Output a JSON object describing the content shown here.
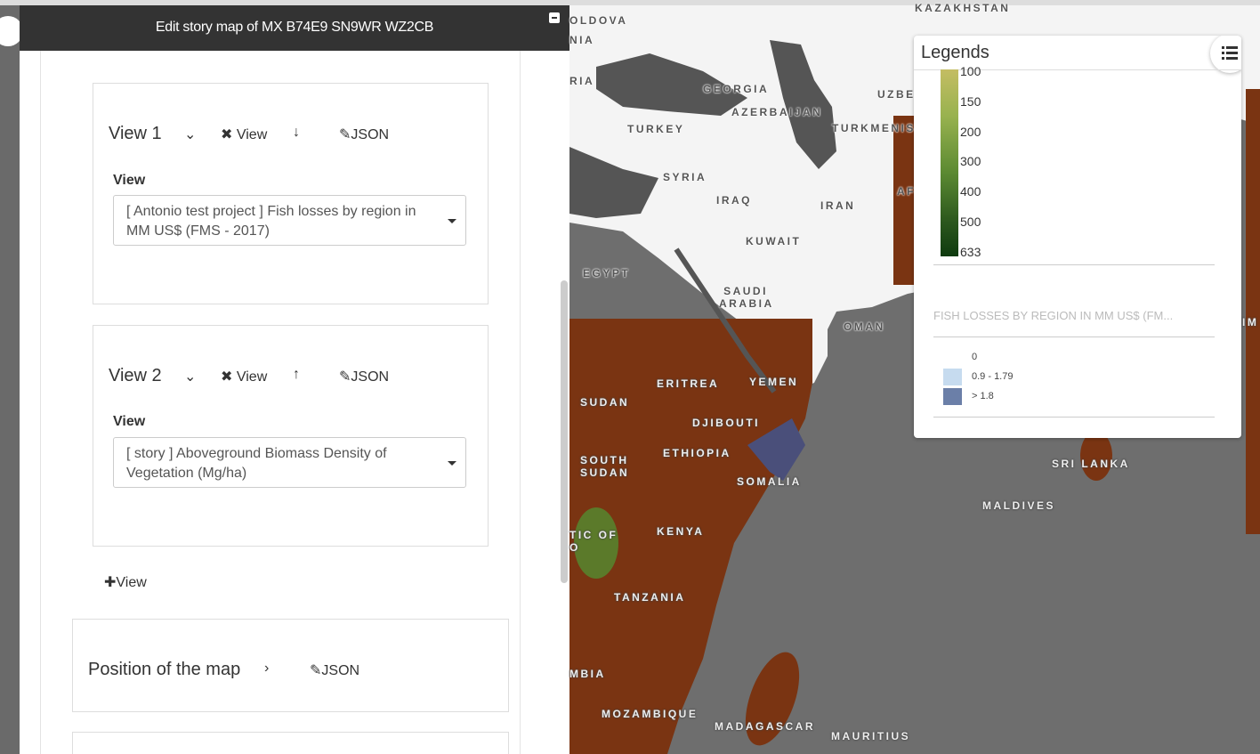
{
  "panel": {
    "title": "Edit story map of MX B74E9 SN9WR WZ2CB",
    "views": [
      {
        "label": "View 1",
        "remove": "View",
        "json": "JSON",
        "field_label": "View",
        "selected": "[ Antonio test project ] Fish losses by region in MM US$ (FMS - 2017)"
      },
      {
        "label": "View 2",
        "remove": "View",
        "json": "JSON",
        "field_label": "View",
        "selected": "[ story ] Aboveground Biomass Density of Vegetation (Mg/ha)"
      }
    ],
    "add_view": "View",
    "position": {
      "label": "Position of the map",
      "json": "JSON"
    }
  },
  "map": {
    "labels": [
      "KAZAKHSTAN",
      "OLDOVA",
      "NIA",
      "RIA",
      "GEORGIA",
      "AZERBAIJAN",
      "UZBE",
      "TURKEY",
      "TURKMENIS",
      "SYRIA",
      "IRAQ",
      "IRAN",
      "AF",
      "KUWAIT",
      "EGYPT",
      "SAUDI ARABIA",
      "OMAN",
      "ERITREA",
      "YEMEN",
      "SUDAN",
      "DJIBOUTI",
      "SOUTH SUDAN",
      "ETHIOPIA",
      "SOMALIA",
      "KENYA",
      "TIC OF O",
      "TANZANIA",
      "MBIA",
      "MOZAMBIQUE",
      "MADAGASCAR",
      "MAURITIUS",
      "MALDIVES",
      "SRI LANKA",
      "IM IM"
    ]
  },
  "legend": {
    "title": "Legends",
    "gradient_ticks": [
      "100",
      "150",
      "200",
      "300",
      "400",
      "500",
      "633"
    ],
    "layer_title": "FISH LOSSES BY REGION IN MM US$ (FM...",
    "items": [
      "0",
      "0.9 - 1.79",
      "> 1.8"
    ]
  }
}
